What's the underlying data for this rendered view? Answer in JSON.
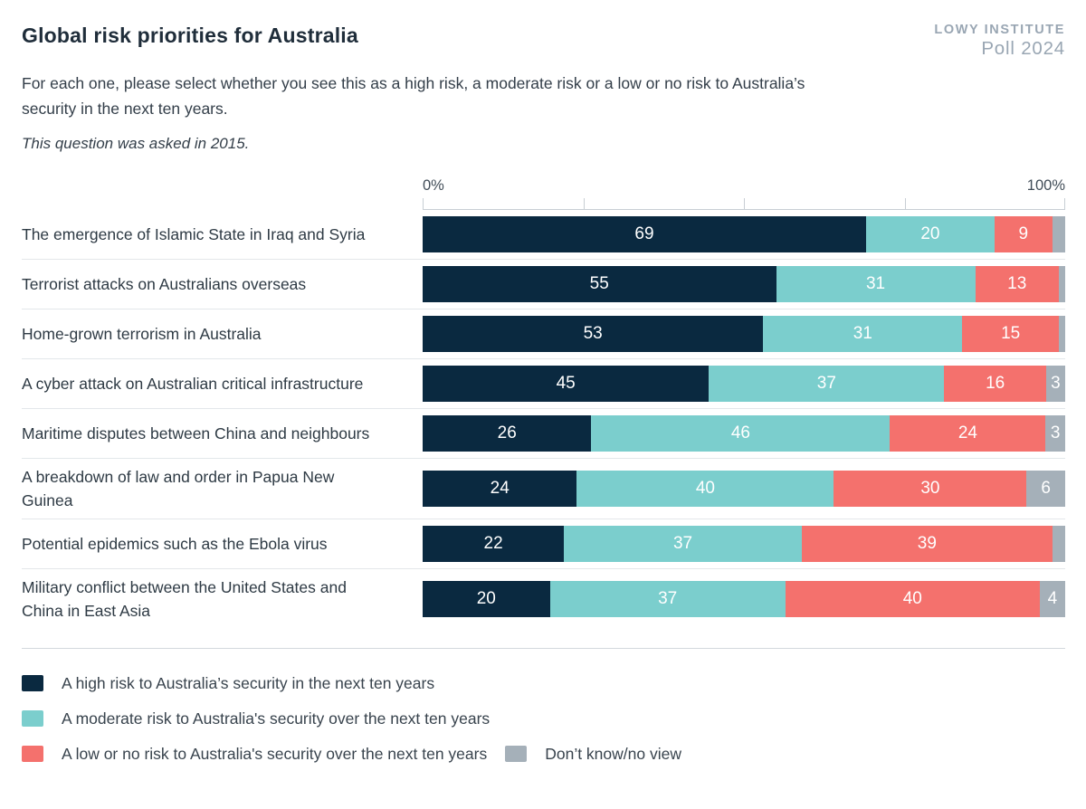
{
  "header": {
    "title": "Global risk priorities for Australia",
    "logo_line1": "LOWY INSTITUTE",
    "logo_line2": "Poll 2024",
    "subtitle": "For each one, please select whether you see this as a high risk, a moderate risk or a low or no risk to Australia’s security in the next ten years.",
    "note": "This question was asked in 2015."
  },
  "colors": {
    "high": "#0a2940",
    "moderate": "#7bcecd",
    "low": "#f4716d",
    "dont_know": "#a5b0b9",
    "axis": "#c8ced4",
    "row_divider": "#e3e7ea",
    "bottom_divider": "#d3d8dd",
    "logo": "#99a6b3"
  },
  "chart_data": {
    "type": "bar",
    "stacked": true,
    "orientation": "horizontal",
    "unit": "percent",
    "xlim": [
      0,
      100
    ],
    "grid": false,
    "legend_position": "bottom",
    "axis": {
      "min_label": "0%",
      "max_label": "100%",
      "tick_positions_pct": [
        0,
        25,
        50,
        75,
        100
      ]
    },
    "series": [
      {
        "key": "high",
        "name": "A high risk to Australia’s security in the next ten years",
        "color": "#0a2940"
      },
      {
        "key": "moderate",
        "name": "A moderate risk to Australia's security over the next ten years",
        "color": "#7bcecd"
      },
      {
        "key": "low",
        "name": "A low or no risk to Australia's security over the next ten years",
        "color": "#f4716d"
      },
      {
        "key": "dk",
        "name": "Don’t know/no view",
        "color": "#a5b0b9"
      }
    ],
    "rows": [
      {
        "label": "The emergence of Islamic State in Iraq and Syria",
        "segments": [
          {
            "series": "high",
            "value": 69,
            "label": "69"
          },
          {
            "series": "moderate",
            "value": 20,
            "label": "20"
          },
          {
            "series": "low",
            "value": 9,
            "label": "9"
          },
          {
            "series": "dk",
            "value": 2,
            "label": ""
          }
        ]
      },
      {
        "label": "Terrorist attacks on Australians overseas",
        "segments": [
          {
            "series": "high",
            "value": 55,
            "label": "55"
          },
          {
            "series": "moderate",
            "value": 31,
            "label": "31"
          },
          {
            "series": "low",
            "value": 13,
            "label": "13"
          },
          {
            "series": "dk",
            "value": 1,
            "label": ""
          }
        ]
      },
      {
        "label": "Home-grown terrorism in Australia",
        "segments": [
          {
            "series": "high",
            "value": 53,
            "label": "53"
          },
          {
            "series": "moderate",
            "value": 31,
            "label": "31"
          },
          {
            "series": "low",
            "value": 15,
            "label": "15"
          },
          {
            "series": "dk",
            "value": 1,
            "label": ""
          }
        ]
      },
      {
        "label": "A cyber attack on Australian critical infrastructure",
        "segments": [
          {
            "series": "high",
            "value": 45,
            "label": "45"
          },
          {
            "series": "moderate",
            "value": 37,
            "label": "37"
          },
          {
            "series": "low",
            "value": 16,
            "label": "16"
          },
          {
            "series": "dk",
            "value": 3,
            "label": "3"
          }
        ]
      },
      {
        "label": "Maritime disputes between China and neighbours",
        "segments": [
          {
            "series": "high",
            "value": 26,
            "label": "26"
          },
          {
            "series": "moderate",
            "value": 46,
            "label": "46"
          },
          {
            "series": "low",
            "value": 24,
            "label": "24"
          },
          {
            "series": "dk",
            "value": 3,
            "label": "3"
          }
        ]
      },
      {
        "label": "A breakdown of law and order in Papua New Guinea",
        "segments": [
          {
            "series": "high",
            "value": 24,
            "label": "24"
          },
          {
            "series": "moderate",
            "value": 40,
            "label": "40"
          },
          {
            "series": "low",
            "value": 30,
            "label": "30"
          },
          {
            "series": "dk",
            "value": 6,
            "label": "6"
          }
        ]
      },
      {
        "label": "Potential epidemics such as the Ebola virus",
        "segments": [
          {
            "series": "high",
            "value": 22,
            "label": "22"
          },
          {
            "series": "moderate",
            "value": 37,
            "label": "37"
          },
          {
            "series": "low",
            "value": 39,
            "label": "39"
          },
          {
            "series": "dk",
            "value": 2,
            "label": ""
          }
        ]
      },
      {
        "label": "Military conflict between the United States and China in East Asia",
        "segments": [
          {
            "series": "high",
            "value": 20,
            "label": "20"
          },
          {
            "series": "moderate",
            "value": 37,
            "label": "37"
          },
          {
            "series": "low",
            "value": 40,
            "label": "40"
          },
          {
            "series": "dk",
            "value": 4,
            "label": "4"
          }
        ]
      }
    ]
  }
}
